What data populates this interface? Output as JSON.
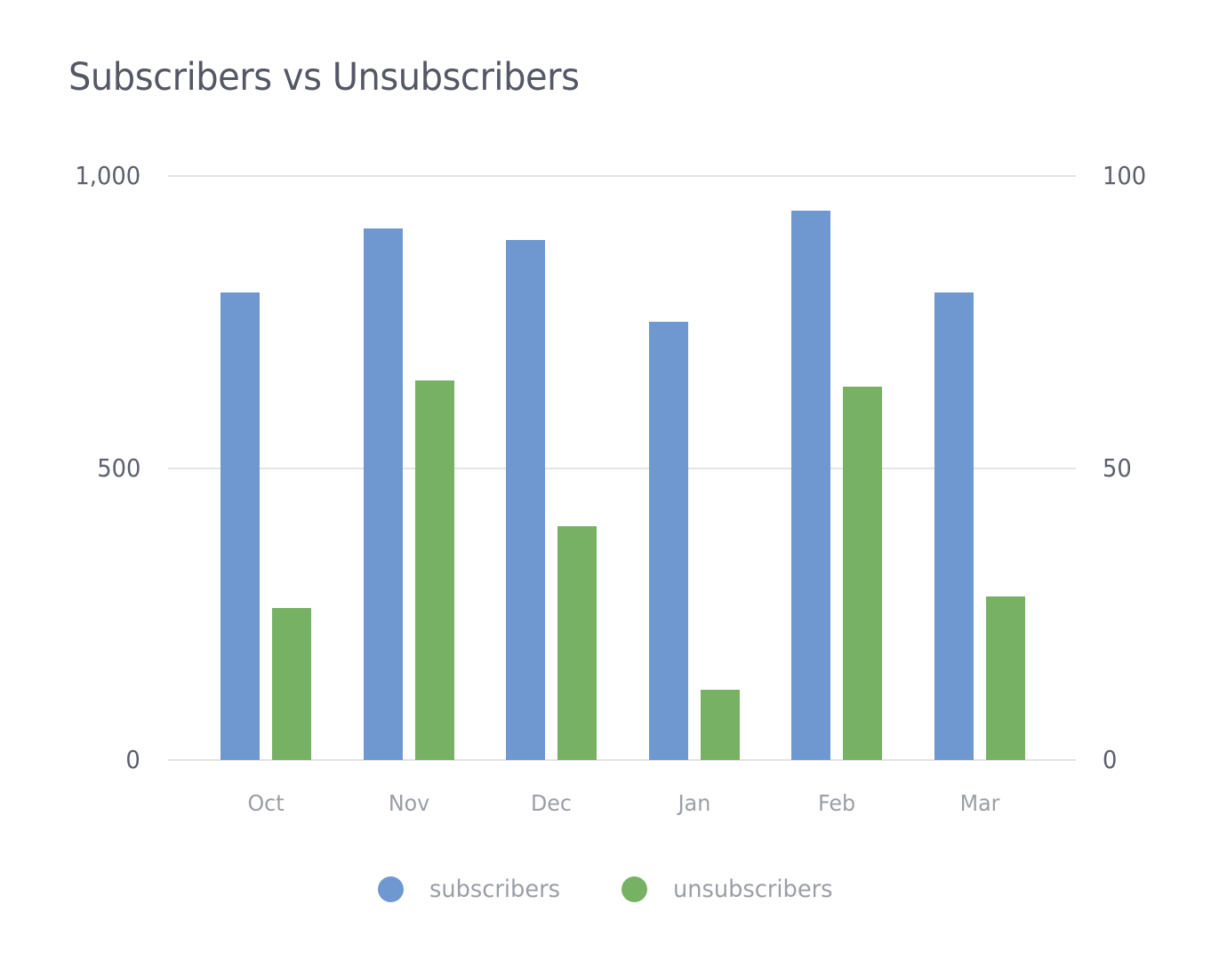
{
  "chart_data": {
    "type": "bar",
    "title": "Subscribers vs Unsubscribers",
    "categories": [
      "Oct",
      "Nov",
      "Dec",
      "Jan",
      "Feb",
      "Mar"
    ],
    "series": [
      {
        "name": "subscribers",
        "axis": "left",
        "color": "#6f98d1",
        "values": [
          800,
          910,
          890,
          750,
          940,
          800
        ]
      },
      {
        "name": "unsubscribers",
        "axis": "right",
        "color": "#76b164",
        "values": [
          26,
          65,
          40,
          12,
          64,
          28
        ]
      }
    ],
    "xlabel": "",
    "ylabel": "",
    "y_left": {
      "ylim": [
        0,
        1000
      ],
      "ticks": [
        "0",
        "500",
        "1,000"
      ]
    },
    "y_right": {
      "ylim": [
        0,
        100
      ],
      "ticks": [
        "0",
        "50",
        "100"
      ]
    },
    "grid": true,
    "legend_position": "bottom"
  },
  "title": "Subscribers vs Unsubscribers",
  "axes": {
    "left_ticks": [
      {
        "label": "1,000",
        "value": 1000
      },
      {
        "label": "500",
        "value": 500
      },
      {
        "label": "0",
        "value": 0
      }
    ],
    "right_ticks": [
      {
        "label": "100",
        "value": 100
      },
      {
        "label": "50",
        "value": 50
      },
      {
        "label": "0",
        "value": 0
      }
    ]
  },
  "categories": [
    "Oct",
    "Nov",
    "Dec",
    "Jan",
    "Feb",
    "Mar"
  ],
  "legend": [
    {
      "label": "subscribers",
      "color": "#6f98d1"
    },
    {
      "label": "unsubscribers",
      "color": "#76b164"
    }
  ]
}
